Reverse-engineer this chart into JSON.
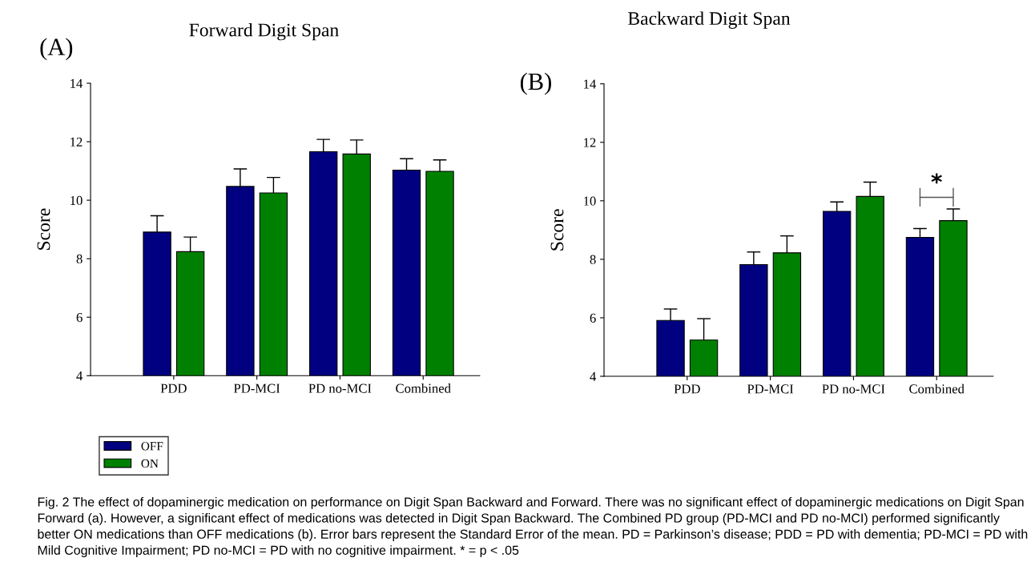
{
  "chart_data": [
    {
      "type": "bar",
      "title": "Forward Digit Span",
      "ylabel": "Score",
      "categories": [
        "PDD",
        "PD-MCI",
        "PD no-MCI",
        "Combined"
      ],
      "series": [
        {
          "name": "OFF",
          "color": "#000080",
          "values": [
            8.91,
            10.47,
            11.66,
            11.03
          ],
          "errors": [
            0.56,
            0.6,
            0.42,
            0.39
          ]
        },
        {
          "name": "ON",
          "color": "#008000",
          "values": [
            8.24,
            10.25,
            11.58,
            10.99
          ],
          "errors": [
            0.5,
            0.53,
            0.48,
            0.39
          ]
        }
      ],
      "ylim": [
        4,
        14
      ],
      "yticks": [
        4,
        6,
        8,
        10,
        12,
        14
      ],
      "grid": false,
      "legend": "bottom left",
      "annotations": [
        "(A)",
        "Fig. 2 The effect of dopaminergic medication on performance on Digit Span Backward and Forward. There was no significant effect of dopaminergic medications on Digit Span Forward (a). However, a significant effect of medications was detected in Digit Span Backward. The Combined PD group (PD-MCI and PD no-MCI) performed significantly better ON medications than OFF medications (b). Error bars represent the Standard Error of the mean. PD = Parkinson’s disease; PDD = PD with dementia; PD-MCI = PD with Mild Cognitive Impairment; PD no-MCI = PD with no cognitive impairment. * = p < .05"
      ]
    },
    {
      "type": "bar",
      "title": "Backward Digit Span",
      "ylabel": "Score",
      "categories": [
        "PDD",
        "PD-MCI",
        "PD no-MCI",
        "Combined"
      ],
      "series": [
        {
          "color": "#000080",
          "values": [
            5.91,
            7.82,
            9.64,
            8.75
          ],
          "errors": [
            0.39,
            0.43,
            0.32,
            0.3
          ]
        },
        {
          "color": "#008000",
          "values": [
            5.24,
            8.22,
            10.15,
            9.32
          ],
          "errors": [
            0.73,
            0.58,
            0.49,
            0.4
          ]
        }
      ],
      "ylim": [
        4,
        14
      ],
      "yticks": [
        4,
        6,
        8,
        10,
        12,
        14
      ],
      "grid": false,
      "annotations": [
        "(B)",
        "*"
      ]
    }
  ]
}
